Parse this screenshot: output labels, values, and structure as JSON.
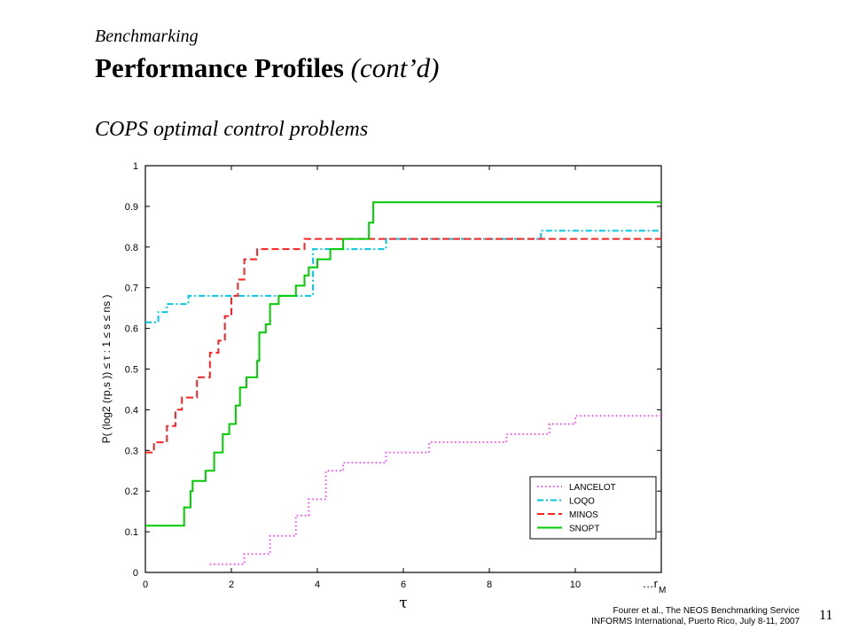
{
  "header": {
    "section": "Benchmarking",
    "title": "Performance Profiles",
    "title_suffix": "(cont’d)",
    "subtitle": "COPS optimal control problems"
  },
  "footer": {
    "line1": "Fourer et al., The NEOS Benchmarking Service",
    "line2": "INFORMS International, Puerto Rico, July 8-11, 2007",
    "page_number": "11"
  },
  "chart_data": {
    "type": "line",
    "step": true,
    "xlabel": "τ",
    "ylabel": "P( (log2 (rp,s )) ≤ τ : 1 ≤ s ≤ ns )",
    "xlim": [
      0,
      12
    ],
    "ylim": [
      0,
      1
    ],
    "xticks": [
      0,
      2,
      4,
      6,
      8,
      10
    ],
    "xtick_labels": [
      "0",
      "2",
      "4",
      "6",
      "8",
      "10"
    ],
    "x_end_label": "…r",
    "x_end_label_sub": "M",
    "yticks": [
      0,
      0.1,
      0.2,
      0.3,
      0.4,
      0.5,
      0.6,
      0.7,
      0.8,
      0.9,
      1
    ],
    "ytick_labels": [
      "0",
      "0.1",
      "0.2",
      "0.3",
      "0.4",
      "0.5",
      "0.6",
      "0.7",
      "0.8",
      "0.9",
      "1"
    ],
    "grid": false,
    "legend_position": "bottom-right",
    "series": [
      {
        "name": "LANCELOT",
        "color": "#ff44ff",
        "dash": "dotted",
        "points": [
          [
            1.5,
            0.02
          ],
          [
            2.3,
            0.045
          ],
          [
            2.9,
            0.09
          ],
          [
            3.5,
            0.14
          ],
          [
            3.8,
            0.18
          ],
          [
            4.2,
            0.25
          ],
          [
            4.6,
            0.27
          ],
          [
            5.6,
            0.295
          ],
          [
            6.6,
            0.32
          ],
          [
            8.4,
            0.34
          ],
          [
            9.4,
            0.365
          ],
          [
            10.0,
            0.385
          ],
          [
            12.0,
            0.385
          ]
        ]
      },
      {
        "name": "LOQO",
        "color": "#00c8e0",
        "dash": "dashdot",
        "points": [
          [
            0,
            0.615
          ],
          [
            0.3,
            0.64
          ],
          [
            0.5,
            0.66
          ],
          [
            1.0,
            0.68
          ],
          [
            3.0,
            0.68
          ],
          [
            3.9,
            0.795
          ],
          [
            5.6,
            0.82
          ],
          [
            9.2,
            0.84
          ],
          [
            12.0,
            0.84
          ]
        ]
      },
      {
        "name": "MINOS",
        "color": "#ff2020",
        "dash": "dashed",
        "points": [
          [
            0,
            0.295
          ],
          [
            0.2,
            0.32
          ],
          [
            0.5,
            0.36
          ],
          [
            0.7,
            0.4
          ],
          [
            0.85,
            0.43
          ],
          [
            1.2,
            0.48
          ],
          [
            1.5,
            0.54
          ],
          [
            1.7,
            0.57
          ],
          [
            1.85,
            0.63
          ],
          [
            2.0,
            0.68
          ],
          [
            2.15,
            0.72
          ],
          [
            2.3,
            0.77
          ],
          [
            2.6,
            0.795
          ],
          [
            3.7,
            0.82
          ],
          [
            12.0,
            0.82
          ]
        ]
      },
      {
        "name": "SNOPT",
        "color": "#00cc00",
        "dash": "solid",
        "points": [
          [
            0,
            0.115
          ],
          [
            0.9,
            0.16
          ],
          [
            1.05,
            0.2
          ],
          [
            1.1,
            0.225
          ],
          [
            1.4,
            0.25
          ],
          [
            1.6,
            0.295
          ],
          [
            1.8,
            0.34
          ],
          [
            1.95,
            0.365
          ],
          [
            2.1,
            0.41
          ],
          [
            2.2,
            0.455
          ],
          [
            2.35,
            0.48
          ],
          [
            2.6,
            0.52
          ],
          [
            2.65,
            0.59
          ],
          [
            2.8,
            0.61
          ],
          [
            2.9,
            0.66
          ],
          [
            3.1,
            0.68
          ],
          [
            3.5,
            0.705
          ],
          [
            3.7,
            0.73
          ],
          [
            3.8,
            0.75
          ],
          [
            4.0,
            0.77
          ],
          [
            4.3,
            0.795
          ],
          [
            4.6,
            0.82
          ],
          [
            5.2,
            0.86
          ],
          [
            5.3,
            0.91
          ],
          [
            12.0,
            0.91
          ]
        ]
      }
    ]
  }
}
